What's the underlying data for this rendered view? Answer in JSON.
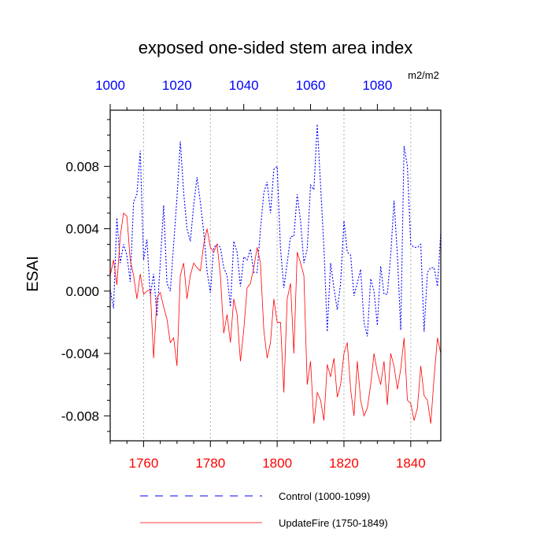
{
  "chart_data": {
    "type": "line",
    "title": "exposed one-sided stem area index",
    "units": "m2/m2",
    "ylabel": "ESAI",
    "ylim": [
      -0.0096,
      0.0116
    ],
    "yticks": [
      -0.008,
      -0.004,
      0.0,
      0.004,
      0.008
    ],
    "ytick_labels": [
      "-0.008",
      "-0.004",
      "0.000",
      "0.004",
      "0.008"
    ],
    "bottom_axis": {
      "range": [
        1750,
        1849
      ],
      "ticks": [
        1760,
        1780,
        1800,
        1820,
        1840
      ],
      "tick_labels": [
        "1760",
        "1780",
        "1800",
        "1820",
        "1840"
      ],
      "color": "#ff0000"
    },
    "top_axis": {
      "range": [
        1000,
        1099
      ],
      "ticks": [
        1000,
        1020,
        1040,
        1060,
        1080
      ],
      "tick_labels": [
        "1000",
        "1020",
        "1040",
        "1060",
        "1080"
      ],
      "color": "#0000ff"
    },
    "vertical_gridlines_at": [
      1760,
      1780,
      1800,
      1820,
      1840
    ],
    "series": [
      {
        "name": "Control (1000-1099)",
        "color": "#0000ff",
        "style": "dashed",
        "x_start": 1750,
        "values": [
          0.0001,
          -0.0011,
          0.0047,
          0.0018,
          0.003,
          0.0023,
          0.0006,
          0.0057,
          0.0062,
          0.009,
          0.002,
          0.0033,
          -0.0003,
          0.0011,
          -0.0016,
          0.0018,
          0.0055,
          0.0005,
          0.0,
          0.003,
          0.006,
          0.0096,
          0.0063,
          0.004,
          0.0032,
          0.0055,
          0.0073,
          0.0057,
          0.0038,
          0.0013,
          -0.0001,
          0.0028,
          0.003,
          0.0028,
          0.0015,
          0.001,
          -0.001,
          0.0032,
          0.0025,
          0.0003,
          0.0022,
          0.002,
          0.0027,
          0.0012,
          0.0012,
          0.004,
          0.0063,
          0.007,
          0.005,
          0.0078,
          0.008,
          0.0027,
          0.0002,
          0.0018,
          0.0035,
          0.0035,
          0.0062,
          0.0045,
          0.0018,
          0.0027,
          0.0068,
          0.0065,
          0.0107,
          0.0068,
          0.0028,
          -0.0026,
          0.0018,
          0.0002,
          -0.0012,
          0.0005,
          0.0045,
          0.0025,
          0.0023,
          -0.0003,
          0.0005,
          0.0014,
          -0.002,
          -0.0029,
          0.0008,
          0.0,
          -0.0022,
          0.0016,
          -0.0002,
          -0.0002,
          0.0023,
          0.0058,
          0.0023,
          -0.0025,
          0.0093,
          0.008,
          0.003,
          0.0028,
          0.0028,
          0.003,
          -0.0026,
          0.0012,
          0.0015,
          0.0015,
          0.0003,
          0.0038
        ]
      },
      {
        "name": "UpdateFire (1750-1849)",
        "color": "#ff0000",
        "style": "solid",
        "x_start": 1750,
        "values": [
          0.001,
          0.002,
          0.0004,
          0.0035,
          0.005,
          0.0048,
          0.002,
          0.001,
          -0.0005,
          0.0011,
          -0.0002,
          0.0,
          0.0001,
          -0.0043,
          -0.0004,
          -0.0001,
          -0.001,
          -0.0018,
          -0.0033,
          -0.003,
          -0.0048,
          0.001,
          0.0018,
          -0.0005,
          0.001,
          0.0018,
          0.0015,
          0.0013,
          0.003,
          0.004,
          0.0028,
          0.0025,
          0.003,
          0.001,
          -0.0027,
          -0.0015,
          -0.0033,
          -0.0005,
          -0.0015,
          -0.0045,
          -0.0025,
          0.0002,
          0.0005,
          0.0015,
          0.0028,
          0.0018,
          -0.0025,
          -0.0043,
          -0.0033,
          -0.0005,
          -0.002,
          -0.002,
          -0.0065,
          -0.0005,
          0.0005,
          -0.004,
          0.0025,
          0.0018,
          0.001,
          -0.006,
          -0.0045,
          -0.0085,
          -0.0065,
          -0.007,
          -0.0083,
          -0.0047,
          -0.0055,
          -0.0043,
          -0.0068,
          -0.006,
          -0.004,
          -0.0033,
          -0.0063,
          -0.008,
          -0.0045,
          -0.007,
          -0.008,
          -0.0075,
          -0.006,
          -0.004,
          -0.0052,
          -0.006,
          -0.0045,
          -0.0073,
          -0.004,
          -0.0048,
          -0.0063,
          -0.005,
          -0.003,
          -0.007,
          -0.0072,
          -0.0083,
          -0.0075,
          -0.0048,
          -0.0067,
          -0.007,
          -0.0085,
          -0.0055,
          -0.003,
          -0.004
        ]
      }
    ]
  }
}
